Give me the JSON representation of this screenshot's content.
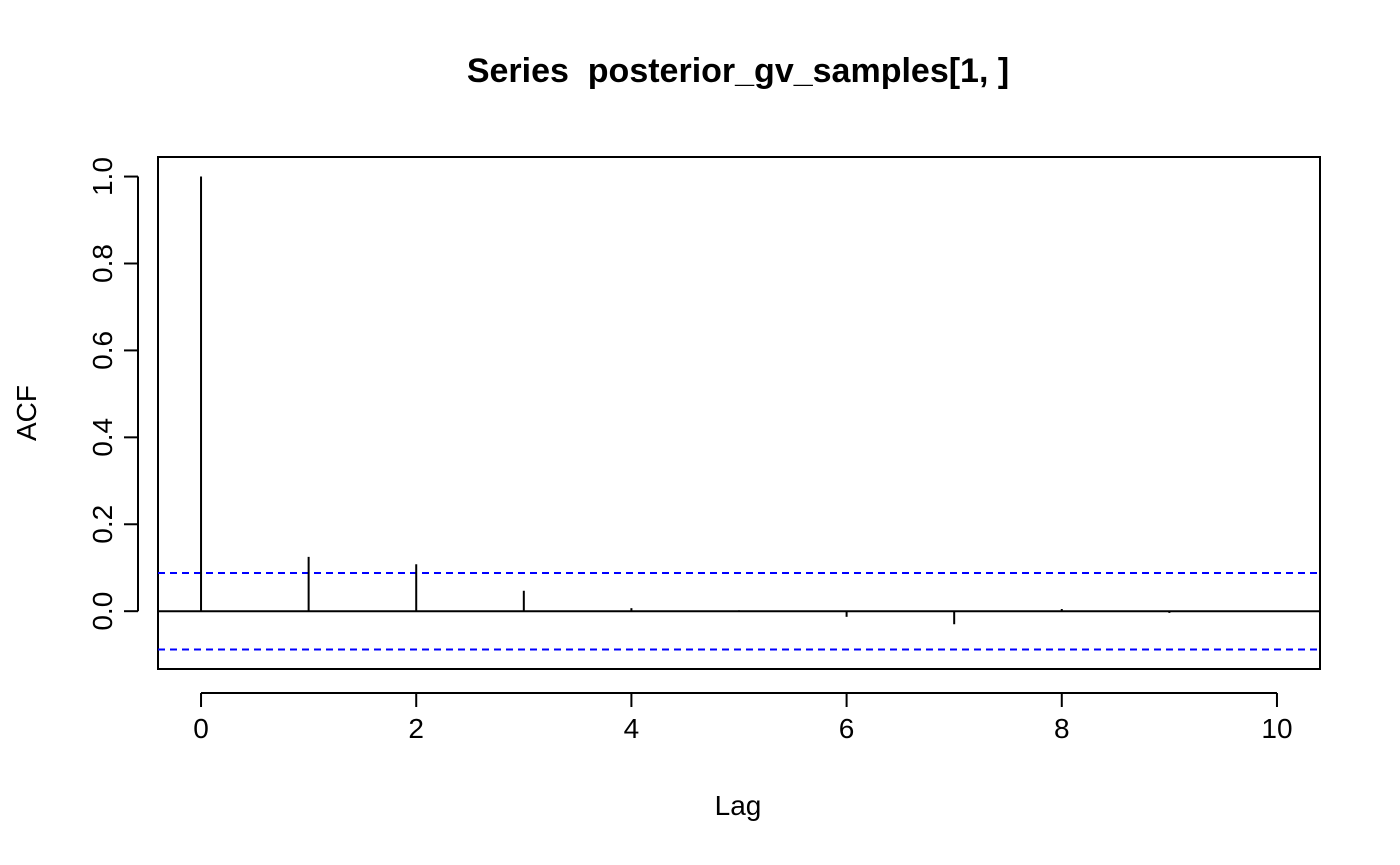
{
  "chart_data": {
    "type": "bar",
    "title": "Series  posterior_gv_samples[1, ]",
    "xlabel": "Lag",
    "ylabel": "ACF",
    "x": [
      0,
      1,
      2,
      3,
      4,
      5,
      6,
      7,
      8,
      9,
      10
    ],
    "values": [
      1.0,
      0.125,
      0.108,
      0.047,
      0.007,
      0.002,
      -0.013,
      -0.03,
      0.005,
      -0.004,
      0.0
    ],
    "xlim": [
      -0.4,
      10.4
    ],
    "ylim": [
      -0.133,
      1.045
    ],
    "xticks": [
      0,
      2,
      4,
      6,
      8,
      10
    ],
    "xtick_labels": [
      "0",
      "2",
      "4",
      "6",
      "8",
      "10"
    ],
    "yticks": [
      0.0,
      0.2,
      0.4,
      0.6,
      0.8,
      1.0
    ],
    "ytick_labels": [
      "0.0",
      "0.2",
      "0.4",
      "0.6",
      "0.8",
      "1.0"
    ],
    "confidence_bound": 0.088,
    "confidence_color": "#0000ff",
    "bar_color": "#000000",
    "grid": false,
    "legend": "none"
  }
}
